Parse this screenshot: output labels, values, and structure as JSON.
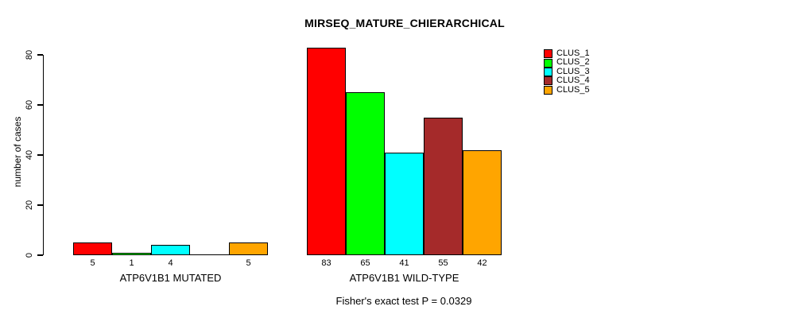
{
  "chart_data": {
    "type": "bar",
    "title": "MIRSEQ_MATURE_CHIERARCHICAL",
    "ylabel": "number of cases",
    "xlabel": "",
    "ylim": [
      0,
      80
    ],
    "yticks": [
      0,
      20,
      40,
      60,
      80
    ],
    "grid": false,
    "legend_position": "top-right",
    "background_color": "#ffffff",
    "bar_border_color": "#000000",
    "categories": [
      "ATP6V1B1 MUTATED",
      "ATP6V1B1 WILD-TYPE"
    ],
    "series": [
      {
        "name": "CLUS_1",
        "color": "#ff0000",
        "values": [
          5,
          83
        ]
      },
      {
        "name": "CLUS_2",
        "color": "#00ff00",
        "values": [
          1,
          65
        ]
      },
      {
        "name": "CLUS_3",
        "color": "#00ffff",
        "values": [
          4,
          41
        ]
      },
      {
        "name": "CLUS_4",
        "color": "#a52a2a",
        "values": [
          0,
          55
        ]
      },
      {
        "name": "CLUS_5",
        "color": "#ffa500",
        "values": [
          5,
          42
        ]
      }
    ],
    "value_labels": {
      "shown": true,
      "hide_zero": true
    },
    "annotation": "Fisher's exact test P = 0.0329"
  }
}
